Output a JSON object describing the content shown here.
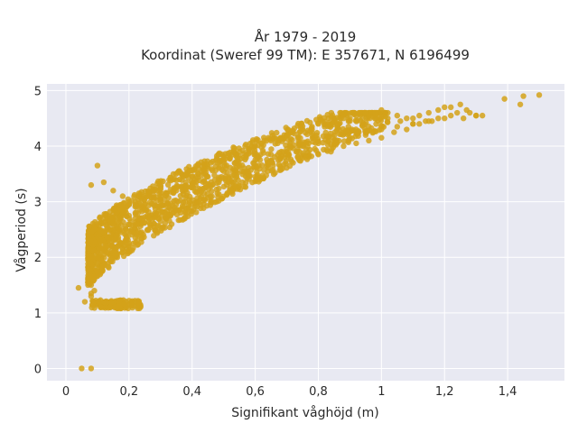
{
  "chart_data": {
    "type": "scatter",
    "title": "År 1979 - 2019",
    "subtitle": "Koordinat (Sweref 99 TM): E 357671, N 6196499",
    "xlabel": "Signifikant våghöjd (m)",
    "ylabel": "Vågperiod (s)",
    "xlim": [
      -0.06,
      1.58
    ],
    "ylim": [
      -0.22,
      5.12
    ],
    "xticks": [
      0,
      0.2,
      0.4,
      0.6,
      0.8,
      1,
      1.2,
      1.4
    ],
    "xtick_labels": [
      "0",
      "0,2",
      "0,4",
      "0,6",
      "0,8",
      "1",
      "1,2",
      "1,4"
    ],
    "yticks": [
      0,
      1,
      2,
      3,
      4,
      5
    ],
    "ytick_labels": [
      "0",
      "1",
      "2",
      "3",
      "4",
      "5"
    ],
    "grid": true,
    "marker_color": "#d4a21a",
    "background_color": "#e8e9f2",
    "series": [
      {
        "x": [
          0.05,
          0.08,
          0.04,
          0.06,
          0.08,
          0.07,
          0.09,
          0.08,
          0.1,
          0.12,
          0.15,
          0.18,
          0.2,
          0.22,
          0.24,
          0.11,
          0.14,
          0.17,
          0.21,
          0.23,
          0.1,
          0.13,
          0.16,
          0.19,
          0.22,
          0.25,
          0.28,
          0.3,
          0.32,
          0.35,
          0.38,
          0.4,
          0.42,
          0.45,
          0.48,
          0.5,
          0.52,
          0.55,
          0.58,
          0.6,
          0.62,
          0.65,
          0.68,
          0.7,
          0.72,
          0.75,
          0.78,
          0.8,
          0.82,
          0.85,
          0.88,
          0.9,
          0.92,
          0.95,
          0.98,
          1.0,
          1.02,
          1.05,
          1.08,
          1.1,
          1.12,
          1.15,
          1.18,
          1.2,
          1.22,
          1.25,
          1.28,
          1.3,
          1.32,
          1.39,
          1.44,
          1.45,
          1.5,
          0.08,
          0.09,
          0.1,
          0.12,
          0.14,
          0.16,
          0.18,
          0.2,
          0.22,
          0.24,
          0.26,
          0.28,
          0.3,
          0.33,
          0.36,
          0.4,
          0.44,
          0.48,
          0.52,
          0.56,
          0.6,
          0.64,
          0.68,
          0.72,
          0.76,
          0.8,
          0.84,
          0.88,
          0.92,
          0.96,
          1.0,
          1.04,
          1.08,
          1.12,
          1.16,
          1.2,
          1.26,
          1.3,
          0.15,
          0.2,
          0.25,
          0.3,
          0.35,
          0.4,
          0.45,
          0.5,
          0.55,
          0.6,
          0.65,
          0.7,
          0.75,
          0.8,
          0.85,
          0.9,
          0.95,
          1.0,
          1.05,
          1.1,
          1.15,
          0.08,
          0.09,
          0.07,
          0.1,
          0.11,
          0.12,
          0.13,
          0.14,
          0.16,
          0.18,
          0.2,
          0.22,
          0.24,
          0.26,
          0.28,
          0.3,
          0.34,
          0.38,
          0.42,
          0.46,
          0.5,
          0.54,
          0.58,
          0.62,
          0.66,
          0.7,
          0.74,
          0.78,
          0.82,
          0.86,
          0.9,
          0.94,
          0.98,
          1.02,
          1.06,
          1.1,
          1.14,
          1.18,
          1.22,
          1.24,
          1.27
        ],
        "y": [
          0.0,
          0.0,
          1.45,
          1.2,
          1.35,
          1.55,
          1.65,
          3.3,
          3.65,
          3.35,
          3.2,
          3.1,
          3.0,
          2.95,
          2.9,
          1.1,
          1.1,
          1.12,
          1.15,
          1.18,
          1.9,
          2.2,
          2.4,
          2.55,
          2.7,
          2.85,
          2.95,
          3.05,
          3.15,
          3.25,
          3.35,
          3.45,
          3.5,
          3.6,
          3.7,
          3.75,
          3.8,
          3.9,
          3.95,
          4.0,
          4.05,
          4.1,
          4.15,
          4.2,
          4.25,
          4.3,
          4.35,
          4.4,
          4.4,
          4.45,
          4.5,
          4.5,
          4.55,
          4.6,
          4.6,
          4.65,
          4.6,
          4.55,
          4.5,
          4.5,
          4.55,
          4.6,
          4.65,
          4.7,
          4.7,
          4.75,
          4.6,
          4.55,
          4.55,
          4.85,
          4.75,
          4.9,
          4.92,
          1.5,
          1.6,
          1.75,
          1.85,
          1.95,
          2.05,
          2.15,
          2.25,
          2.35,
          2.45,
          2.5,
          2.6,
          2.65,
          2.75,
          2.85,
          2.95,
          3.05,
          3.15,
          3.25,
          3.35,
          3.45,
          3.55,
          3.6,
          3.7,
          3.8,
          3.85,
          3.9,
          4.0,
          4.05,
          4.1,
          4.15,
          4.25,
          4.3,
          4.4,
          4.45,
          4.5,
          4.5,
          4.55,
          2.6,
          2.75,
          2.95,
          3.1,
          3.2,
          3.3,
          3.45,
          3.55,
          3.65,
          3.75,
          3.85,
          3.95,
          4.0,
          4.05,
          4.1,
          4.15,
          4.2,
          4.3,
          4.35,
          4.4,
          4.45,
          1.3,
          1.4,
          1.6,
          2.0,
          2.3,
          2.45,
          2.55,
          2.65,
          2.8,
          2.9,
          2.95,
          3.0,
          3.05,
          3.1,
          3.2,
          3.3,
          3.4,
          3.5,
          3.6,
          3.7,
          3.8,
          3.85,
          3.95,
          4.05,
          4.15,
          4.2,
          4.25,
          4.3,
          4.35,
          4.4,
          4.45,
          4.5,
          4.55,
          4.5,
          4.45,
          4.4,
          4.45,
          4.5,
          4.55,
          4.6,
          4.65
        ]
      }
    ]
  }
}
